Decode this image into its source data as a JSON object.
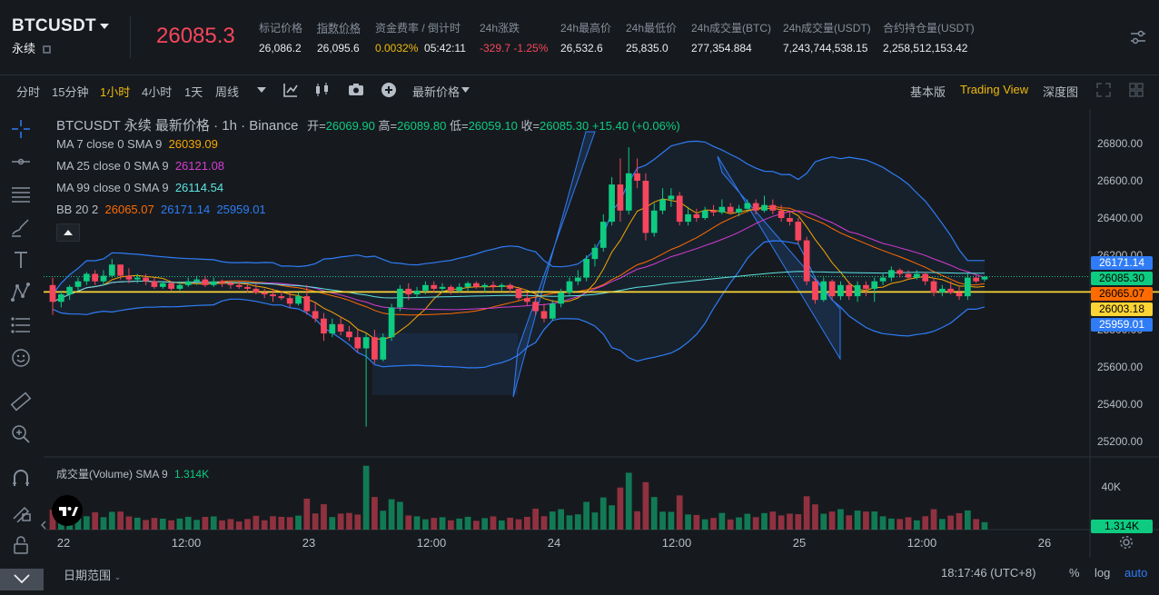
{
  "header": {
    "symbol": "BTCUSDT",
    "contract_type": "永续",
    "last_price": "26085.3",
    "stats": [
      {
        "label": "标记价格",
        "value": "26,086.2"
      },
      {
        "label": "指数价格",
        "value": "26,095.6"
      },
      {
        "label": "资金费率 / 倒计时",
        "value_rate": "0.0032%",
        "value_countdown": "05:42:11"
      },
      {
        "label": "24h涨跌",
        "value": "-329.7 -1.25%"
      },
      {
        "label": "24h最高价",
        "value": "26,532.6"
      },
      {
        "label": "24h最低价",
        "value": "25,835.0"
      },
      {
        "label": "24h成交量(BTC)",
        "value": "277,354.884"
      },
      {
        "label": "24h成交量(USDT)",
        "value": "7,243,744,538.15"
      },
      {
        "label": "合约持仓量(USDT)",
        "value": "2,258,512,153.42"
      }
    ]
  },
  "toolbar": {
    "intervals": [
      "分时",
      "15分钟",
      "1小时",
      "4小时",
      "1天",
      "周线"
    ],
    "active_interval": "1小时",
    "price_type": "最新价格",
    "views": [
      "基本版",
      "Trading View",
      "深度图"
    ],
    "active_view": "Trading View"
  },
  "legend": {
    "title": "BTCUSDT 永续 最新价格 · 1h · Binance",
    "ohlc": {
      "o_label": "开=",
      "o": "26069.90",
      "h_label": "高=",
      "h": "26089.80",
      "l_label": "低=",
      "l": "26059.10",
      "c_label": "收=",
      "c": "26085.30",
      "change": "+15.40 (+0.06%)"
    },
    "ma7": {
      "label": "MA 7 close 0 SMA 9",
      "value": "26039.09",
      "color": "#f7a600"
    },
    "ma25": {
      "label": "MA 25 close 0 SMA 9",
      "value": "26121.08",
      "color": "#d63cd3"
    },
    "ma99": {
      "label": "MA 99 close 0 SMA 9",
      "value": "26114.54",
      "color": "#5ee3e3"
    },
    "bb": {
      "label": "BB 20 2",
      "basis": "26065.07",
      "upper": "26171.14",
      "lower": "25959.01",
      "basis_color": "#ff6b00",
      "band_color": "#2f7cf6"
    }
  },
  "volume_legend": {
    "label": "成交量(Volume) SMA 9",
    "value": "1.314K"
  },
  "price_tags": [
    {
      "value": "26171.14",
      "bg": "#2f7cf6",
      "fg": "#ffffff"
    },
    {
      "value": "26085.30",
      "bg": "#0ecb81",
      "fg": "#000000"
    },
    {
      "value": "26065.07",
      "bg": "#ff6b00",
      "fg": "#000000"
    },
    {
      "value": "26003.18",
      "bg": "#fcd535",
      "fg": "#000000"
    },
    {
      "value": "25959.01",
      "bg": "#2f7cf6",
      "fg": "#ffffff"
    },
    {
      "value": "1.314K",
      "bg": "#0ecb81",
      "fg": "#000000"
    }
  ],
  "y_ticks": [
    "26800.00",
    "26600.00",
    "26400.00",
    "26200.00",
    "26000.00",
    "25800.00",
    "25600.00",
    "25400.00",
    "25200.00"
  ],
  "volume_tick": "40K",
  "x_ticks": [
    "22",
    "12:00",
    "23",
    "12:00",
    "24",
    "12:00",
    "25",
    "12:00",
    "26"
  ],
  "bottom": {
    "date_range": "日期范围",
    "clock": "18:17:46 (UTC+8)",
    "percent": "%",
    "log": "log",
    "auto": "auto"
  },
  "chart_data": {
    "type": "candlestick",
    "interval": "1h",
    "horizontal_line": 26003.18,
    "candles": [
      {
        "o": 26040,
        "h": 26080,
        "l": 25880,
        "c": 25950
      },
      {
        "o": 25950,
        "h": 26010,
        "l": 25920,
        "c": 25990
      },
      {
        "o": 25990,
        "h": 26040,
        "l": 25960,
        "c": 26030
      },
      {
        "o": 26030,
        "h": 26080,
        "l": 26010,
        "c": 26060
      },
      {
        "o": 26060,
        "h": 26110,
        "l": 26040,
        "c": 26100
      },
      {
        "o": 26100,
        "h": 26120,
        "l": 26040,
        "c": 26060
      },
      {
        "o": 26060,
        "h": 26120,
        "l": 26040,
        "c": 26090
      },
      {
        "o": 26090,
        "h": 26180,
        "l": 26080,
        "c": 26150
      },
      {
        "o": 26150,
        "h": 26150,
        "l": 26070,
        "c": 26090
      },
      {
        "o": 26090,
        "h": 26130,
        "l": 26050,
        "c": 26070
      },
      {
        "o": 26070,
        "h": 26100,
        "l": 26050,
        "c": 26080
      },
      {
        "o": 26080,
        "h": 26100,
        "l": 26040,
        "c": 26060
      },
      {
        "o": 26060,
        "h": 26080,
        "l": 26020,
        "c": 26030
      },
      {
        "o": 26030,
        "h": 26060,
        "l": 26020,
        "c": 26050
      },
      {
        "o": 26050,
        "h": 26060,
        "l": 26010,
        "c": 26020
      },
      {
        "o": 26020,
        "h": 26060,
        "l": 26010,
        "c": 26040
      },
      {
        "o": 26040,
        "h": 26080,
        "l": 26030,
        "c": 26060
      },
      {
        "o": 26060,
        "h": 26090,
        "l": 26040,
        "c": 26070
      },
      {
        "o": 26070,
        "h": 26090,
        "l": 26030,
        "c": 26040
      },
      {
        "o": 26040,
        "h": 26080,
        "l": 26030,
        "c": 26060
      },
      {
        "o": 26060,
        "h": 26070,
        "l": 26030,
        "c": 26050
      },
      {
        "o": 26050,
        "h": 26060,
        "l": 26020,
        "c": 26040
      },
      {
        "o": 26040,
        "h": 26060,
        "l": 26020,
        "c": 26030
      },
      {
        "o": 26030,
        "h": 26050,
        "l": 26000,
        "c": 26020
      },
      {
        "o": 26020,
        "h": 26050,
        "l": 25990,
        "c": 26000
      },
      {
        "o": 26000,
        "h": 26020,
        "l": 25970,
        "c": 25990
      },
      {
        "o": 25990,
        "h": 26020,
        "l": 25950,
        "c": 25980
      },
      {
        "o": 25980,
        "h": 26010,
        "l": 25960,
        "c": 25970
      },
      {
        "o": 25970,
        "h": 26000,
        "l": 25920,
        "c": 25940
      },
      {
        "o": 25940,
        "h": 26000,
        "l": 25930,
        "c": 25980
      },
      {
        "o": 25980,
        "h": 26040,
        "l": 25880,
        "c": 25900
      },
      {
        "o": 25900,
        "h": 25950,
        "l": 25840,
        "c": 25860
      },
      {
        "o": 25860,
        "h": 25890,
        "l": 25740,
        "c": 25780
      },
      {
        "o": 25780,
        "h": 25860,
        "l": 25760,
        "c": 25830
      },
      {
        "o": 25830,
        "h": 25870,
        "l": 25770,
        "c": 25790
      },
      {
        "o": 25790,
        "h": 25820,
        "l": 25740,
        "c": 25760
      },
      {
        "o": 25760,
        "h": 25800,
        "l": 25680,
        "c": 25700
      },
      {
        "o": 25700,
        "h": 25780,
        "l": 25280,
        "c": 25760
      },
      {
        "o": 25760,
        "h": 25800,
        "l": 25620,
        "c": 25640
      },
      {
        "o": 25640,
        "h": 25780,
        "l": 25630,
        "c": 25760
      },
      {
        "o": 25760,
        "h": 25940,
        "l": 25740,
        "c": 25920
      },
      {
        "o": 25920,
        "h": 26040,
        "l": 25900,
        "c": 26020
      },
      {
        "o": 26020,
        "h": 26050,
        "l": 25960,
        "c": 25990
      },
      {
        "o": 25990,
        "h": 26030,
        "l": 25970,
        "c": 26010
      },
      {
        "o": 26010,
        "h": 26060,
        "l": 25990,
        "c": 26040
      },
      {
        "o": 26040,
        "h": 26060,
        "l": 26000,
        "c": 26020
      },
      {
        "o": 26020,
        "h": 26050,
        "l": 26000,
        "c": 26030
      },
      {
        "o": 26030,
        "h": 26040,
        "l": 25990,
        "c": 26010
      },
      {
        "o": 26010,
        "h": 26050,
        "l": 26000,
        "c": 26030
      },
      {
        "o": 26030,
        "h": 26060,
        "l": 26010,
        "c": 26050
      },
      {
        "o": 26050,
        "h": 26060,
        "l": 26020,
        "c": 26030
      },
      {
        "o": 26030,
        "h": 26050,
        "l": 26000,
        "c": 26040
      },
      {
        "o": 26040,
        "h": 26060,
        "l": 26010,
        "c": 26030
      },
      {
        "o": 26030,
        "h": 26050,
        "l": 26010,
        "c": 26040
      },
      {
        "o": 26040,
        "h": 26050,
        "l": 26000,
        "c": 26020
      },
      {
        "o": 26020,
        "h": 26030,
        "l": 25960,
        "c": 25970
      },
      {
        "o": 25970,
        "h": 26000,
        "l": 25930,
        "c": 25950
      },
      {
        "o": 25950,
        "h": 25990,
        "l": 25880,
        "c": 25900
      },
      {
        "o": 25900,
        "h": 25940,
        "l": 25840,
        "c": 25860
      },
      {
        "o": 25860,
        "h": 25960,
        "l": 25850,
        "c": 25940
      },
      {
        "o": 25940,
        "h": 26020,
        "l": 25920,
        "c": 26000
      },
      {
        "o": 26000,
        "h": 26080,
        "l": 25980,
        "c": 26060
      },
      {
        "o": 26060,
        "h": 26120,
        "l": 26040,
        "c": 26080
      },
      {
        "o": 26080,
        "h": 26200,
        "l": 26060,
        "c": 26180
      },
      {
        "o": 26180,
        "h": 26260,
        "l": 26140,
        "c": 26240
      },
      {
        "o": 26240,
        "h": 26420,
        "l": 26220,
        "c": 26380
      },
      {
        "o": 26380,
        "h": 26620,
        "l": 26360,
        "c": 26580
      },
      {
        "o": 26580,
        "h": 26720,
        "l": 26380,
        "c": 26440
      },
      {
        "o": 26440,
        "h": 26780,
        "l": 26420,
        "c": 26640
      },
      {
        "o": 26640,
        "h": 26720,
        "l": 26560,
        "c": 26600
      },
      {
        "o": 26600,
        "h": 26640,
        "l": 26280,
        "c": 26320
      },
      {
        "o": 26320,
        "h": 26480,
        "l": 26300,
        "c": 26440
      },
      {
        "o": 26440,
        "h": 26560,
        "l": 26420,
        "c": 26500
      },
      {
        "o": 26500,
        "h": 26560,
        "l": 26460,
        "c": 26520
      },
      {
        "o": 26520,
        "h": 26540,
        "l": 26360,
        "c": 26380
      },
      {
        "o": 26380,
        "h": 26460,
        "l": 26360,
        "c": 26420
      },
      {
        "o": 26420,
        "h": 26450,
        "l": 26380,
        "c": 26400
      },
      {
        "o": 26400,
        "h": 26460,
        "l": 26390,
        "c": 26440
      },
      {
        "o": 26440,
        "h": 26470,
        "l": 26410,
        "c": 26430
      },
      {
        "o": 26430,
        "h": 26500,
        "l": 26420,
        "c": 26460
      },
      {
        "o": 26460,
        "h": 26480,
        "l": 26420,
        "c": 26430
      },
      {
        "o": 26430,
        "h": 26470,
        "l": 26410,
        "c": 26450
      },
      {
        "o": 26450,
        "h": 26500,
        "l": 26430,
        "c": 26480
      },
      {
        "o": 26480,
        "h": 26500,
        "l": 26420,
        "c": 26440
      },
      {
        "o": 26440,
        "h": 26520,
        "l": 26430,
        "c": 26470
      },
      {
        "o": 26470,
        "h": 26500,
        "l": 26420,
        "c": 26440
      },
      {
        "o": 26440,
        "h": 26470,
        "l": 26380,
        "c": 26400
      },
      {
        "o": 26400,
        "h": 26440,
        "l": 26360,
        "c": 26380
      },
      {
        "o": 26380,
        "h": 26400,
        "l": 26260,
        "c": 26280
      },
      {
        "o": 26280,
        "h": 26300,
        "l": 26040,
        "c": 26060
      },
      {
        "o": 26060,
        "h": 26080,
        "l": 25940,
        "c": 25960
      },
      {
        "o": 25960,
        "h": 26080,
        "l": 25950,
        "c": 26060
      },
      {
        "o": 26060,
        "h": 26070,
        "l": 25960,
        "c": 25980
      },
      {
        "o": 25980,
        "h": 26060,
        "l": 25960,
        "c": 26040
      },
      {
        "o": 26040,
        "h": 26060,
        "l": 25960,
        "c": 25980
      },
      {
        "o": 25980,
        "h": 26060,
        "l": 25950,
        "c": 26040
      },
      {
        "o": 26040,
        "h": 26060,
        "l": 25980,
        "c": 26020
      },
      {
        "o": 26020,
        "h": 26080,
        "l": 25950,
        "c": 26060
      },
      {
        "o": 26060,
        "h": 26100,
        "l": 26040,
        "c": 26080
      },
      {
        "o": 26080,
        "h": 26140,
        "l": 26060,
        "c": 26120
      },
      {
        "o": 26120,
        "h": 26130,
        "l": 26080,
        "c": 26100
      },
      {
        "o": 26100,
        "h": 26120,
        "l": 26070,
        "c": 26080
      },
      {
        "o": 26080,
        "h": 26120,
        "l": 26070,
        "c": 26100
      },
      {
        "o": 26100,
        "h": 26110,
        "l": 26040,
        "c": 26060
      },
      {
        "o": 26060,
        "h": 26080,
        "l": 25980,
        "c": 26000
      },
      {
        "o": 26000,
        "h": 26040,
        "l": 25980,
        "c": 26020
      },
      {
        "o": 26020,
        "h": 26060,
        "l": 25990,
        "c": 26000
      },
      {
        "o": 26000,
        "h": 26030,
        "l": 25960,
        "c": 25980
      },
      {
        "o": 25980,
        "h": 26100,
        "l": 25960,
        "c": 26080
      },
      {
        "o": 26080,
        "h": 26090,
        "l": 26050,
        "c": 26060
      },
      {
        "o": 26069.9,
        "h": 26089.8,
        "l": 26059.1,
        "c": 26085.3
      }
    ],
    "volume_max": 50000
  }
}
